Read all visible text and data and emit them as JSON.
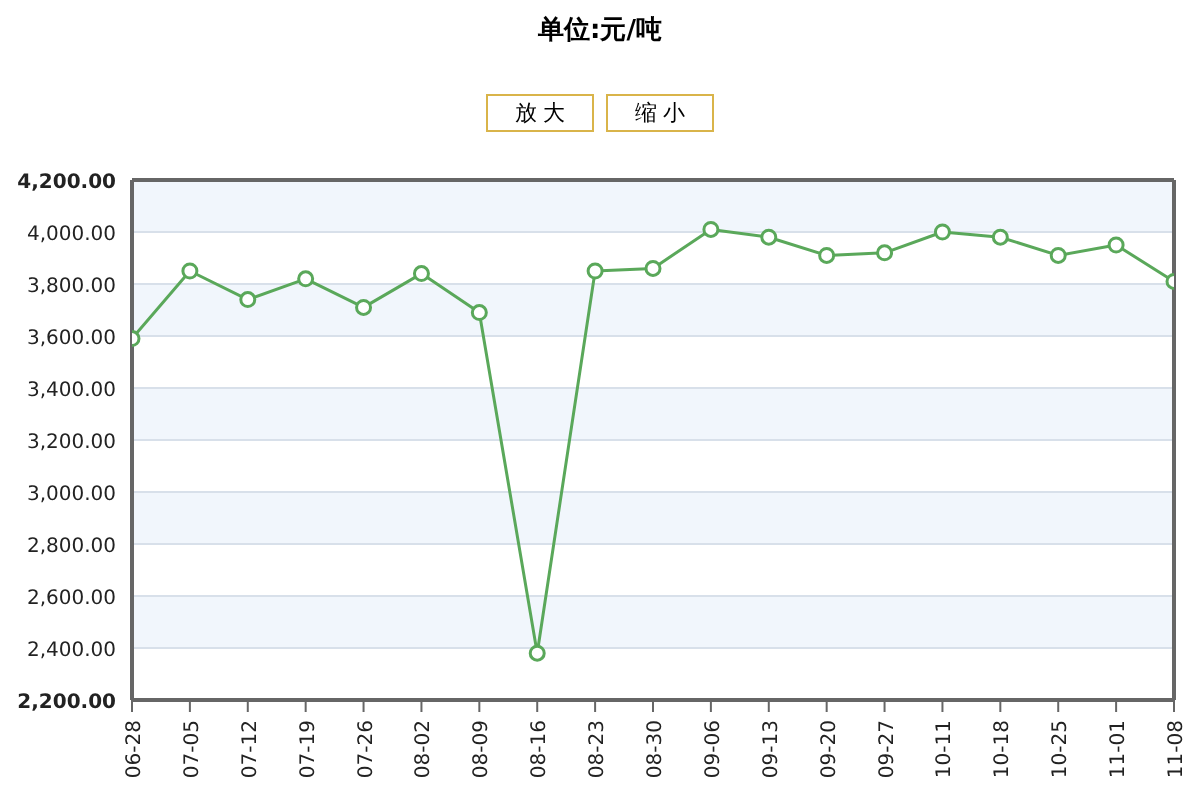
{
  "chart_data": {
    "type": "line",
    "title": "单位:元/吨",
    "annotations": [
      "放 大",
      "缩 小"
    ],
    "categories": [
      "06-28",
      "07-05",
      "07-12",
      "07-19",
      "07-26",
      "08-02",
      "08-09",
      "08-16",
      "08-23",
      "08-30",
      "09-06",
      "09-13",
      "09-20",
      "09-27",
      "10-11",
      "10-18",
      "10-25",
      "11-01",
      "11-08"
    ],
    "series": [
      {
        "color": "#5aa85a",
        "values": [
          3590,
          3850,
          3740,
          3820,
          3710,
          3840,
          3690,
          2380,
          3850,
          3860,
          4010,
          3980,
          3910,
          3920,
          4000,
          3980,
          3910,
          3950,
          3810
        ]
      }
    ],
    "ylim": [
      2200,
      4200
    ],
    "yticks": [
      {
        "value": 2200,
        "label": "2,200.00"
      },
      {
        "value": 2400,
        "label": "2,400.00"
      },
      {
        "value": 2600,
        "label": "2,600.00"
      },
      {
        "value": 2800,
        "label": "2,800.00"
      },
      {
        "value": 3000,
        "label": "3,000.00"
      },
      {
        "value": 3200,
        "label": "3,200.00"
      },
      {
        "value": 3400,
        "label": "3,400.00"
      },
      {
        "value": 3600,
        "label": "3,600.00"
      },
      {
        "value": 3800,
        "label": "3,800.00"
      },
      {
        "value": 4000,
        "label": "4,000.00"
      },
      {
        "value": 4200,
        "label": "4,200.00"
      }
    ],
    "grid": "y",
    "marker": "circle"
  }
}
